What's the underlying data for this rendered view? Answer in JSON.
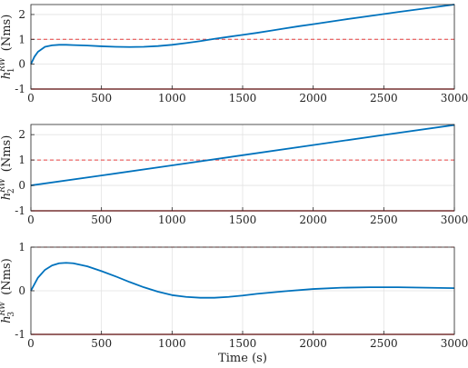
{
  "chart_data": [
    {
      "type": "line",
      "ylabel_main": "h",
      "ylabel_sup": "RW",
      "ylabel_sub": "1",
      "ylabel_unit": "(Nms)",
      "xlabel": "",
      "xlim": [
        0,
        3000
      ],
      "ylim": [
        -1,
        2.4
      ],
      "xticks": [
        "0",
        "500",
        "1000",
        "1500",
        "2000",
        "2500",
        "3000"
      ],
      "yticks": [
        "-1",
        "0",
        "1",
        "2"
      ],
      "grid": true,
      "series": [
        {
          "color": "#0072BD",
          "x": [
            0,
            25,
            50,
            100,
            150,
            200,
            250,
            300,
            400,
            500,
            600,
            700,
            800,
            900,
            1000,
            1100,
            1200,
            1300,
            1400,
            1500,
            1600,
            1700,
            1800,
            1900,
            2000,
            2200,
            2400,
            2600,
            2800,
            3000
          ],
          "y": [
            0,
            0.3,
            0.5,
            0.7,
            0.76,
            0.78,
            0.78,
            0.77,
            0.75,
            0.72,
            0.7,
            0.69,
            0.7,
            0.73,
            0.78,
            0.85,
            0.93,
            1.02,
            1.1,
            1.18,
            1.26,
            1.35,
            1.44,
            1.53,
            1.61,
            1.78,
            1.94,
            2.1,
            2.25,
            2.4
          ]
        }
      ],
      "limits": [
        {
          "y": 1,
          "style": "dashed",
          "color": "#e84040"
        },
        {
          "y": -1,
          "style": "solid",
          "color": "#d23c3c"
        }
      ]
    },
    {
      "type": "line",
      "ylabel_main": "h",
      "ylabel_sup": "RW",
      "ylabel_sub": "2",
      "ylabel_unit": "(Nms)",
      "xlabel": "",
      "xlim": [
        0,
        3000
      ],
      "ylim": [
        -1,
        2.4
      ],
      "xticks": [
        "0",
        "500",
        "1000",
        "1500",
        "2000",
        "2500",
        "3000"
      ],
      "yticks": [
        "-1",
        "0",
        "1",
        "2"
      ],
      "grid": true,
      "series": [
        {
          "color": "#0072BD",
          "x": [
            0,
            500,
            1000,
            1500,
            2000,
            2500,
            3000
          ],
          "y": [
            0,
            0.39,
            0.79,
            1.19,
            1.59,
            1.99,
            2.38
          ]
        }
      ],
      "limits": [
        {
          "y": 1,
          "style": "dashed",
          "color": "#e84040"
        },
        {
          "y": -1,
          "style": "solid",
          "color": "#d23c3c"
        }
      ]
    },
    {
      "type": "line",
      "ylabel_main": "h",
      "ylabel_sup": "RW",
      "ylabel_sub": "3",
      "ylabel_unit": "(Nms)",
      "xlabel": "Time (s)",
      "xlim": [
        0,
        3000
      ],
      "ylim": [
        -1,
        1
      ],
      "xticks": [
        "0",
        "500",
        "1000",
        "1500",
        "2000",
        "2500",
        "3000"
      ],
      "yticks": [
        "-1",
        "0",
        "1"
      ],
      "grid": true,
      "series": [
        {
          "color": "#0072BD",
          "x": [
            0,
            50,
            100,
            150,
            200,
            250,
            300,
            400,
            500,
            600,
            700,
            800,
            900,
            1000,
            1100,
            1200,
            1300,
            1400,
            1500,
            1600,
            1800,
            2000,
            2200,
            2400,
            2600,
            2800,
            3000
          ],
          "y": [
            0,
            0.3,
            0.48,
            0.58,
            0.63,
            0.64,
            0.63,
            0.56,
            0.45,
            0.33,
            0.2,
            0.08,
            -0.02,
            -0.1,
            -0.14,
            -0.16,
            -0.16,
            -0.14,
            -0.11,
            -0.07,
            -0.01,
            0.04,
            0.07,
            0.08,
            0.08,
            0.07,
            0.06
          ]
        }
      ],
      "limits": [
        {
          "y": 1,
          "style": "dashed",
          "color": "#e84040"
        },
        {
          "y": -1,
          "style": "solid",
          "color": "#d23c3c"
        }
      ]
    }
  ]
}
